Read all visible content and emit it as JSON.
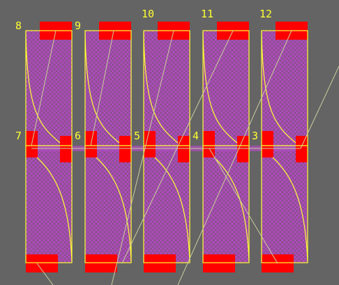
{
  "colors": {
    "background": "#646464",
    "body_fill": "#8a4f8c",
    "hatch": "#b04cc0",
    "pad": "#ff0000",
    "outline": "#ffff33",
    "ratsnest": "#c9cf9c",
    "label": "#ffff33"
  },
  "pin_labels": {
    "top": [
      "8",
      "9",
      "10",
      "11",
      "12"
    ],
    "middle": [
      "7",
      "6",
      "5",
      "4",
      "3"
    ]
  }
}
